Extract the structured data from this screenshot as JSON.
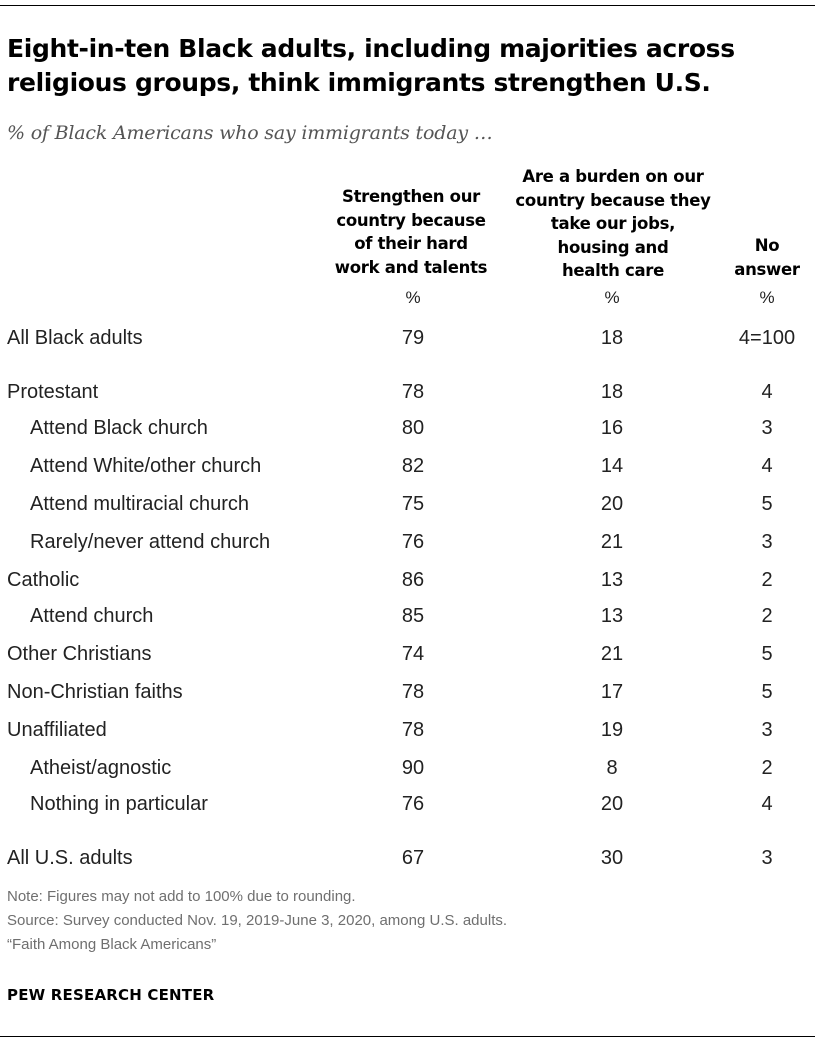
{
  "title": "Eight-in-ten Black adults, including majorities across religious groups, think immigrants strengthen U.S.",
  "subtitle": "% of Black Americans who say immigrants today …",
  "chart_data": {
    "type": "table",
    "title": "Eight-in-ten Black adults, including majorities across religious groups, think immigrants strengthen U.S.",
    "subtitle": "% of Black Americans who say immigrants today …",
    "columns": [
      {
        "lines": [
          "Strengthen our",
          "country because",
          "of their hard",
          "work and talents"
        ],
        "unit": "%"
      },
      {
        "lines": [
          "Are a burden on our",
          "country because they",
          "take our jobs,",
          "housing and",
          "health care"
        ],
        "unit": "%"
      },
      {
        "lines": [
          "No",
          "answer"
        ],
        "unit": "%"
      }
    ],
    "rows": [
      {
        "label": "All Black adults",
        "indent": false,
        "values": [
          "79",
          "18",
          "4=100"
        ]
      },
      {
        "label": "Protestant",
        "indent": false,
        "values": [
          "78",
          "18",
          "4"
        ]
      },
      {
        "label": "Attend Black church",
        "indent": true,
        "values": [
          "80",
          "16",
          "3"
        ]
      },
      {
        "label": "Attend White/other church",
        "indent": true,
        "values": [
          "82",
          "14",
          "4"
        ]
      },
      {
        "label": "Attend multiracial church",
        "indent": true,
        "values": [
          "75",
          "20",
          "5"
        ]
      },
      {
        "label": "Rarely/never attend church",
        "indent": true,
        "values": [
          "76",
          "21",
          "3"
        ]
      },
      {
        "label": "Catholic",
        "indent": false,
        "values": [
          "86",
          "13",
          "2"
        ]
      },
      {
        "label": "Attend church",
        "indent": true,
        "values": [
          "85",
          "13",
          "2"
        ]
      },
      {
        "label": "Other Christians",
        "indent": false,
        "values": [
          "74",
          "21",
          "5"
        ]
      },
      {
        "label": "Non-Christian faiths",
        "indent": false,
        "values": [
          "78",
          "17",
          "5"
        ]
      },
      {
        "label": "Unaffiliated",
        "indent": false,
        "values": [
          "78",
          "19",
          "3"
        ]
      },
      {
        "label": "Atheist/agnostic",
        "indent": true,
        "values": [
          "90",
          "8",
          "2"
        ]
      },
      {
        "label": "Nothing in particular",
        "indent": true,
        "values": [
          "76",
          "20",
          "4"
        ]
      },
      {
        "label": "All U.S. adults",
        "indent": false,
        "values": [
          "67",
          "30",
          "3"
        ]
      }
    ]
  },
  "footer": {
    "note": "Note: Figures may not add to 100% due to rounding.",
    "source_line1": "Source: Survey conducted Nov. 19, 2019-June 3, 2020, among U.S. adults.",
    "source_line2": "“Faith Among Black Americans”",
    "brand": "PEW RESEARCH CENTER"
  }
}
